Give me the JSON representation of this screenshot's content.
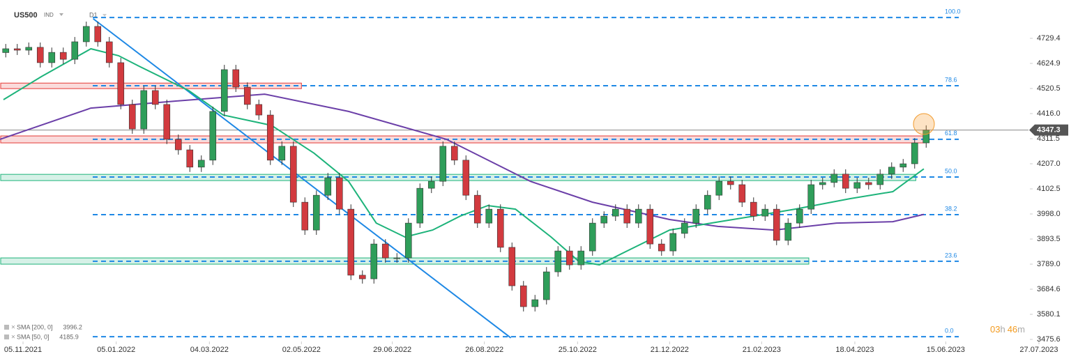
{
  "header": {
    "symbol": "US500",
    "market": "IND",
    "timeframe": "D1"
  },
  "chart_data": {
    "type": "candlestick",
    "candles": {
      "open": [
        4670,
        4686,
        4680,
        4692,
        4628,
        4671,
        4642,
        4715,
        4779,
        4715,
        4628,
        4454,
        4352,
        4512,
        4454,
        4309,
        4265,
        4193,
        4222,
        4425,
        4599,
        4526,
        4454,
        4410,
        4222,
        4280,
        4047,
        3931,
        4076,
        4149,
        4018,
        3743,
        3728,
        3873,
        3815,
        3815,
        3960,
        4105,
        4134,
        4280,
        4222,
        4076,
        3960,
        4018,
        3859,
        3699,
        3612,
        3641,
        3757,
        3844,
        3786,
        3844,
        3960,
        3989,
        4018,
        3960,
        4018,
        3873,
        3844,
        3917,
        3960,
        4018,
        4076,
        4134,
        4120,
        4047,
        3989,
        4018,
        3888,
        3960,
        4018,
        4120,
        4129,
        4164,
        4105,
        4129,
        4120,
        4164,
        4193,
        4207,
        4294
      ],
      "high": [
        4706,
        4706,
        4712,
        4712,
        4691,
        4691,
        4735,
        4799,
        4799,
        4735,
        4648,
        4474,
        4532,
        4532,
        4474,
        4329,
        4285,
        4242,
        4445,
        4619,
        4619,
        4546,
        4474,
        4430,
        4300,
        4300,
        4067,
        4096,
        4169,
        4169,
        4038,
        3763,
        3893,
        3893,
        3835,
        3980,
        4125,
        4154,
        4300,
        4300,
        4242,
        4096,
        4038,
        4038,
        3879,
        3719,
        3661,
        3777,
        3864,
        3864,
        3864,
        3980,
        4009,
        4038,
        4038,
        4038,
        4038,
        3893,
        3937,
        3980,
        4038,
        4096,
        4154,
        4154,
        4140,
        4067,
        4038,
        4038,
        3980,
        4038,
        4140,
        4149,
        4184,
        4184,
        4149,
        4149,
        4184,
        4213,
        4227,
        4314,
        4367
      ],
      "low": [
        4650,
        4660,
        4660,
        4608,
        4608,
        4622,
        4622,
        4695,
        4695,
        4608,
        4434,
        4332,
        4332,
        4434,
        4289,
        4245,
        4173,
        4173,
        4202,
        4405,
        4506,
        4434,
        4390,
        4202,
        4202,
        4027,
        3911,
        3911,
        4056,
        3998,
        3723,
        3708,
        3708,
        3795,
        3795,
        3795,
        3940,
        4085,
        4114,
        4202,
        4056,
        3940,
        3940,
        3839,
        3679,
        3592,
        3592,
        3621,
        3737,
        3766,
        3766,
        3824,
        3940,
        3969,
        3940,
        3940,
        3853,
        3824,
        3824,
        3897,
        3940,
        3998,
        4056,
        4100,
        4027,
        3969,
        3969,
        3868,
        3868,
        3940,
        3998,
        4100,
        4109,
        4085,
        4085,
        4100,
        4100,
        4144,
        4173,
        4187,
        4274
      ],
      "close": [
        4686,
        4680,
        4692,
        4628,
        4671,
        4642,
        4715,
        4779,
        4715,
        4628,
        4454,
        4352,
        4512,
        4454,
        4309,
        4265,
        4193,
        4222,
        4425,
        4599,
        4526,
        4454,
        4410,
        4222,
        4280,
        4047,
        3931,
        4076,
        4149,
        4018,
        3743,
        3728,
        3873,
        3815,
        3815,
        3960,
        4105,
        4134,
        4280,
        4222,
        4076,
        3960,
        4018,
        3859,
        3699,
        3612,
        3641,
        3757,
        3844,
        3786,
        3844,
        3960,
        3989,
        4018,
        3960,
        4018,
        3873,
        3844,
        3917,
        3960,
        4018,
        4076,
        4134,
        4120,
        4047,
        3989,
        4018,
        3888,
        3960,
        4018,
        4120,
        4129,
        4164,
        4105,
        4129,
        4120,
        4164,
        4193,
        4207,
        4294,
        4347.3
      ],
      "up_color": "#2f9e5a",
      "down_color": "#d23a3f"
    },
    "series": [
      {
        "name": "SMA [200, 0]",
        "color": "#6b3fa8",
        "x": [
          -0.5,
          7.4,
          14.7,
          22.5,
          29.8,
          38.3,
          45.6,
          51,
          57.7,
          61.9,
          66.8,
          72.2,
          77.1,
          79.8
        ],
        "values": [
          4309,
          4439,
          4468,
          4497,
          4425,
          4309,
          4134,
          4047,
          3975,
          3946,
          3931,
          3960,
          3966,
          3996.2
        ]
      },
      {
        "name": "SMA [50, 0]",
        "color": "#1db37a",
        "x": [
          -0.2,
          3.1,
          7.4,
          9.8,
          11.6,
          15.9,
          18.9,
          23.1,
          26.8,
          29.8,
          32.2,
          34.7,
          37.1,
          39.5,
          41.9,
          44.3,
          47.4,
          49.8,
          51.6,
          54.0,
          57.7,
          61.3,
          65.0,
          68.6,
          73.4,
          77.1,
          79.8
        ],
        "values": [
          4474,
          4570,
          4686,
          4657,
          4613,
          4512,
          4410,
          4367,
          4251,
          4134,
          3960,
          3902,
          3931,
          3989,
          4033,
          4018,
          3902,
          3801,
          3786,
          3844,
          3931,
          3960,
          3989,
          4018,
          4062,
          4091,
          4185.9
        ]
      }
    ],
    "fib_levels": [
      {
        "label": "100.0",
        "value": 4816
      },
      {
        "label": "78.6",
        "value": 4532
      },
      {
        "label": "61.8",
        "value": 4309
      },
      {
        "label": "50.0",
        "value": 4152
      },
      {
        "label": "38.2",
        "value": 3995
      },
      {
        "label": "23.6",
        "value": 3801
      },
      {
        "label": "0.0",
        "value": 3487
      }
    ],
    "fib_color": "#1e88e5",
    "zones": [
      {
        "from": 4520,
        "to": 4543,
        "x_end": 25.7,
        "color": "#e53935"
      },
      {
        "from": 4294,
        "to": 4323,
        "x_end": 79.9,
        "color": "#e53935"
      },
      {
        "from": 4137,
        "to": 4163,
        "x_end": 79.1,
        "color": "#1db37a"
      },
      {
        "from": 3789,
        "to": 3815,
        "x_end": 69.8,
        "color": "#1db37a"
      }
    ],
    "trendline": {
      "x": [
        7.6,
        43.9
      ],
      "values": [
        4811,
        3482
      ],
      "color": "#1e88e5"
    },
    "current_price": 4347.3,
    "xlim": [
      -0.5,
      91
    ],
    "ylim": [
      3467,
      4889
    ],
    "xticks": [
      {
        "value": 1.5,
        "label": "05.11.2021"
      },
      {
        "value": 9.6,
        "label": "05.01.2022"
      },
      {
        "value": 17.7,
        "label": "04.03.2022"
      },
      {
        "value": 25.7,
        "label": "02.05.2022"
      },
      {
        "value": 33.6,
        "label": "29.06.2022"
      },
      {
        "value": 41.6,
        "label": "26.08.2022"
      },
      {
        "value": 49.7,
        "label": "25.10.2022"
      },
      {
        "value": 57.7,
        "label": "21.12.2022"
      },
      {
        "value": 65.7,
        "label": "21.02.2023"
      },
      {
        "value": 73.8,
        "label": "18.04.2023"
      },
      {
        "value": 81.7,
        "label": "15.06.2023"
      },
      {
        "value": 89.8,
        "label": "27.07.2023"
      }
    ],
    "yticks": [
      4729.4,
      4624.9,
      4520.5,
      {
        "value": 4416,
        "label": "4416.0"
      },
      4311.5,
      {
        "value": 4207,
        "label": "4207.0"
      },
      4102.5,
      {
        "value": 3998,
        "label": "3998.0"
      },
      3893.5,
      {
        "value": 3789,
        "label": "3789.0"
      },
      3684.6,
      3580.1,
      3475.6
    ]
  },
  "countdown": {
    "hours": "03",
    "h": "h",
    "minutes": "46",
    "m": "m"
  }
}
